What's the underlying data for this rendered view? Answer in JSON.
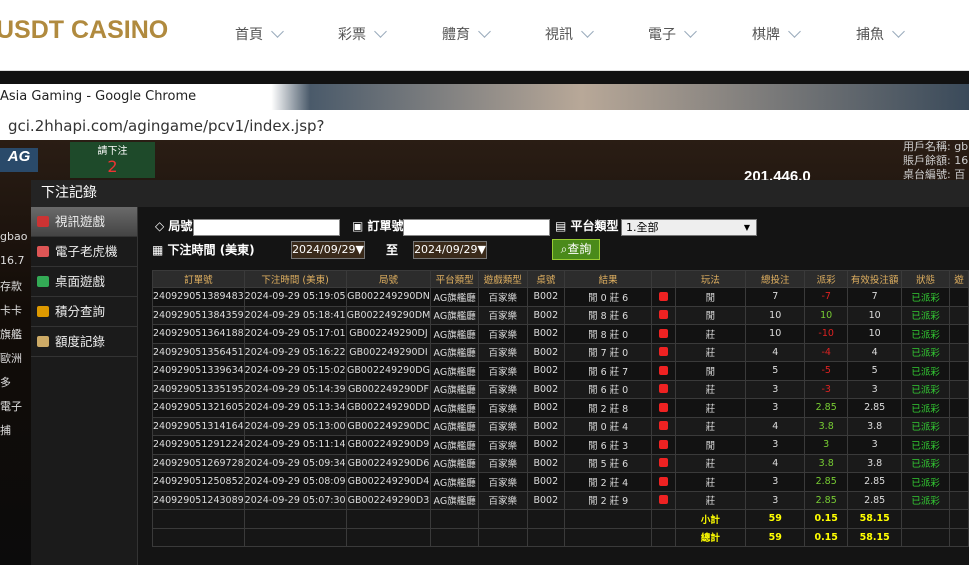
{
  "site_header": {
    "logo": "USDT CASINO",
    "nav": [
      "首頁",
      "彩票",
      "體育",
      "視訊",
      "電子",
      "棋牌",
      "捕魚"
    ]
  },
  "browser": {
    "title": "Asia Gaming - Google Chrome",
    "url": "gci.2hhapi.com/agingame/pcv1/index.jsp?"
  },
  "game_background": {
    "user_info": [
      "用戶名稱: gb",
      "賬戶餘額: 16",
      "桌台編號: 百"
    ],
    "amount": "201,446.0",
    "logo": "AG",
    "prompt": "請下注",
    "count": "2",
    "side_labels": [
      "gbao",
      "16.7",
      "存款",
      "卡卡",
      "旗艦",
      "歐洲",
      "多",
      "電子",
      "捕"
    ]
  },
  "modal": {
    "title": "下注記錄",
    "sidebar": [
      "視訊遊戲",
      "電子老虎機",
      "桌面遊戲",
      "積分查詢",
      "額度記錄"
    ],
    "filters": {
      "round_label": "局號",
      "order_label": "訂單號",
      "platform_label": "平台類型",
      "platform_value": "1.全部",
      "time_label": "下注時間 (美東)",
      "date_from": "2024/09/29▼",
      "to_label": "至",
      "date_to": "2024/09/29▼",
      "query_button": "查詢"
    },
    "table": {
      "headers": [
        "訂單號",
        "下注時間 (美東)",
        "局號",
        "平台類型",
        "遊戲類型",
        "桌號",
        "結果",
        "玩法",
        "總投注",
        "派彩",
        "有效投注額",
        "狀態",
        "遊"
      ],
      "rows": [
        [
          "240929051389483",
          "2024-09-29 05:19:05",
          "GB002249290DN",
          "AG旗艦廳",
          "百家樂",
          "B002",
          "閒 0 莊 6",
          "閒",
          "7",
          "-7",
          "7",
          "已派彩"
        ],
        [
          "240929051384359",
          "2024-09-29 05:18:41",
          "GB002249290DM",
          "AG旗艦廳",
          "百家樂",
          "B002",
          "閒 8 莊 6",
          "閒",
          "10",
          "10",
          "10",
          "已派彩"
        ],
        [
          "240929051364188",
          "2024-09-29 05:17:01",
          "GB002249290DJ",
          "AG旗艦廳",
          "百家樂",
          "B002",
          "閒 8 莊 0",
          "莊",
          "10",
          "-10",
          "10",
          "已派彩"
        ],
        [
          "240929051356451",
          "2024-09-29 05:16:22",
          "GB002249290DI",
          "AG旗艦廳",
          "百家樂",
          "B002",
          "閒 7 莊 0",
          "莊",
          "4",
          "-4",
          "4",
          "已派彩"
        ],
        [
          "240929051339634",
          "2024-09-29 05:15:02",
          "GB002249290DG",
          "AG旗艦廳",
          "百家樂",
          "B002",
          "閒 6 莊 7",
          "閒",
          "5",
          "-5",
          "5",
          "已派彩"
        ],
        [
          "240929051335195",
          "2024-09-29 05:14:39",
          "GB002249290DF",
          "AG旗艦廳",
          "百家樂",
          "B002",
          "閒 6 莊 0",
          "莊",
          "3",
          "-3",
          "3",
          "已派彩"
        ],
        [
          "240929051321605",
          "2024-09-29 05:13:34",
          "GB002249290DD",
          "AG旗艦廳",
          "百家樂",
          "B002",
          "閒 2 莊 8",
          "莊",
          "3",
          "2.85",
          "2.85",
          "已派彩"
        ],
        [
          "240929051314164",
          "2024-09-29 05:13:00",
          "GB002249290DC",
          "AG旗艦廳",
          "百家樂",
          "B002",
          "閒 0 莊 4",
          "莊",
          "4",
          "3.8",
          "3.8",
          "已派彩"
        ],
        [
          "240929051291224",
          "2024-09-29 05:11:14",
          "GB002249290D9",
          "AG旗艦廳",
          "百家樂",
          "B002",
          "閒 6 莊 3",
          "閒",
          "3",
          "3",
          "3",
          "已派彩"
        ],
        [
          "240929051269728",
          "2024-09-29 05:09:34",
          "GB002249290D6",
          "AG旗艦廳",
          "百家樂",
          "B002",
          "閒 5 莊 6",
          "莊",
          "4",
          "3.8",
          "3.8",
          "已派彩"
        ],
        [
          "240929051250852",
          "2024-09-29 05:08:09",
          "GB002249290D4",
          "AG旗艦廳",
          "百家樂",
          "B002",
          "閒 2 莊 4",
          "莊",
          "3",
          "2.85",
          "2.85",
          "已派彩"
        ],
        [
          "240929051243089",
          "2024-09-29 05:07:30",
          "GB002249290D3",
          "AG旗艦廳",
          "百家樂",
          "B002",
          "閒 2 莊 9",
          "莊",
          "3",
          "2.85",
          "2.85",
          "已派彩"
        ]
      ],
      "subtotal": {
        "label": "小計",
        "total_bet": "59",
        "payout": "0.15",
        "valid_bet": "58.15"
      },
      "total": {
        "label": "總計",
        "total_bet": "59",
        "payout": "0.15",
        "valid_bet": "58.15"
      }
    }
  }
}
